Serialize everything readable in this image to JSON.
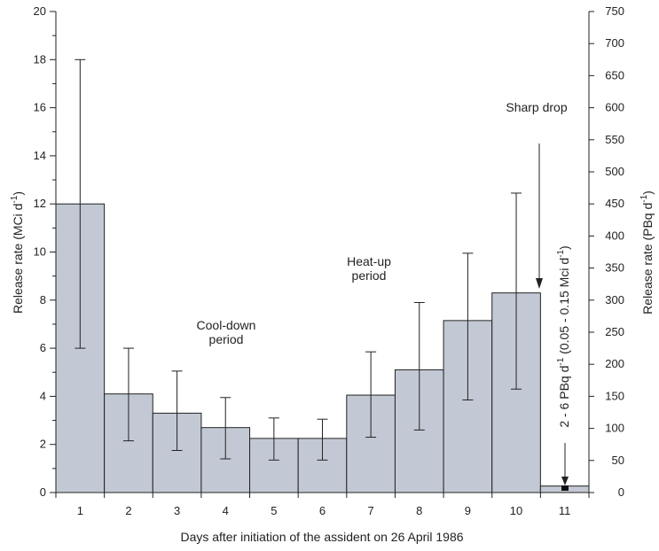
{
  "chart_data": {
    "type": "bar",
    "xlabel": "Days after initiation of the assident on 26  April 1986",
    "ylabel": "Release rate (MCi d",
    "ylabel_sup": "-1",
    "ylabel_close": ")",
    "y2label": "Release rate (PBq d",
    "y2label_sup": "-1",
    "y2label_close": ")",
    "ylim": [
      0,
      20
    ],
    "y2lim": [
      0,
      750
    ],
    "yticks": [
      "0",
      "2",
      "4",
      "6",
      "8",
      "10",
      "12",
      "14",
      "16",
      "18",
      "20"
    ],
    "y2ticks": [
      "0",
      "50",
      "100",
      "150",
      "200",
      "250",
      "300",
      "350",
      "400",
      "450",
      "500",
      "550",
      "600",
      "650",
      "700",
      "750"
    ],
    "categories": [
      "1",
      "2",
      "3",
      "4",
      "5",
      "6",
      "7",
      "8",
      "9",
      "10",
      "11"
    ],
    "values": [
      12.0,
      4.1,
      3.3,
      2.7,
      2.25,
      2.25,
      4.05,
      5.1,
      7.15,
      8.3,
      0.27
    ],
    "error_low": [
      6.0,
      2.15,
      1.75,
      1.4,
      1.35,
      1.35,
      2.3,
      2.6,
      3.85,
      4.3,
      null
    ],
    "error_high": [
      18.0,
      6.0,
      5.05,
      3.95,
      3.1,
      3.05,
      5.85,
      7.9,
      9.95,
      12.45,
      null
    ],
    "bar_color": "#c3c9d4",
    "annotations": {
      "cooldown_line1": "Cool-down",
      "cooldown_line2": "period",
      "heatup_line1": "Heat-up",
      "heatup_line2": "period",
      "sharp_drop": "Sharp drop",
      "vertical_note": "2 - 6 PBq d",
      "vertical_note_sup": "-1",
      "vertical_note_tail": " (0.05 - 0.15 Mci d",
      "vertical_note_sup2": "-1",
      "vertical_note_close": ")"
    }
  }
}
